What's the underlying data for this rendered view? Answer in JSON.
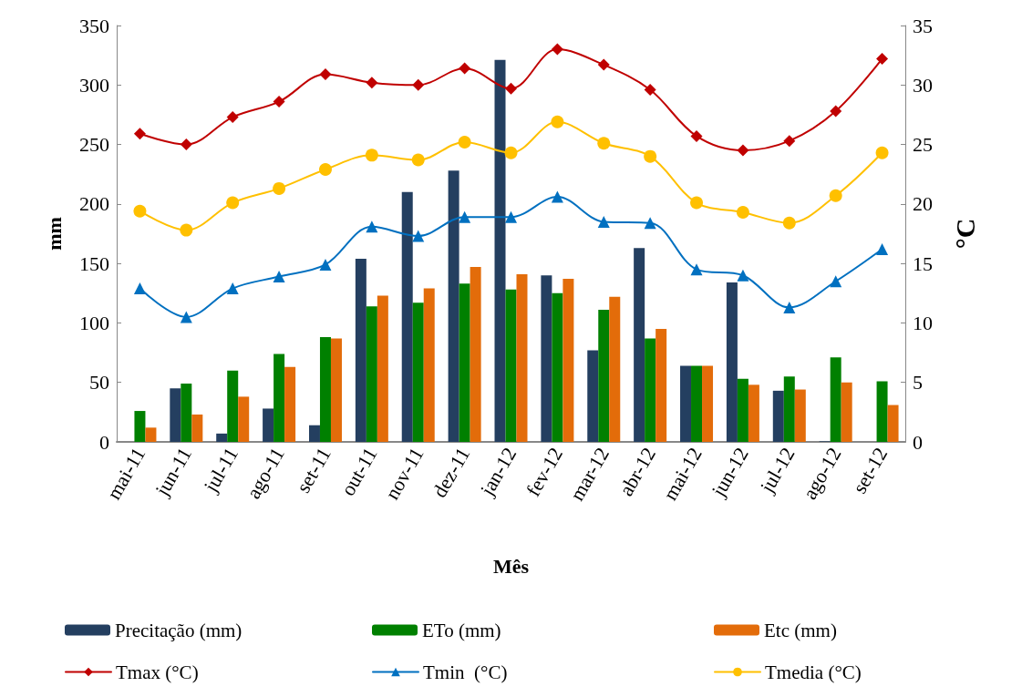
{
  "chart_data": {
    "type": "bar",
    "xlabel": "Mês",
    "ylabel": "mm",
    "y2label": "°C",
    "categories": [
      "mai-11",
      "jun-11",
      "jul-11",
      "ago-11",
      "set-11",
      "out-11",
      "nov-11",
      "dez-11",
      "jan-12",
      "fev-12",
      "mar-12",
      "abr-12",
      "mai-12",
      "jun-12",
      "jul-12",
      "ago-12",
      "set-12"
    ],
    "series": [
      {
        "name": "Precitação (mm)",
        "color": "#243f60",
        "values": [
          0,
          45,
          7,
          28,
          14,
          154,
          210,
          228,
          321,
          140,
          77,
          163,
          64,
          134,
          43,
          0.5,
          0
        ]
      },
      {
        "name": "ETo (mm)",
        "color": "#008000",
        "values": [
          26,
          49,
          60,
          74,
          88,
          114,
          117,
          133,
          128,
          125,
          111,
          87,
          64,
          53,
          55,
          71,
          51
        ]
      },
      {
        "name": "Etc (mm)",
        "color": "#e36c0a",
        "values": [
          12,
          23,
          38,
          63,
          87,
          123,
          129,
          147,
          141,
          137,
          122,
          95,
          64,
          48,
          44,
          50,
          31
        ]
      },
      {
        "name": "Tmax (°C)",
        "type": "line",
        "axis": "y2",
        "marker": "diamond",
        "color": "#c00000",
        "values": [
          25.9,
          25.0,
          27.3,
          28.6,
          30.9,
          30.2,
          30.0,
          31.4,
          29.7,
          33.0,
          31.7,
          29.6,
          25.7,
          24.5,
          25.3,
          27.8,
          32.2
        ]
      },
      {
        "name": "Tmin  (°C)",
        "type": "line",
        "axis": "y2",
        "marker": "triangle",
        "color": "#0070c0",
        "values": [
          12.9,
          10.5,
          12.9,
          13.9,
          14.9,
          18.1,
          17.3,
          18.9,
          18.9,
          20.6,
          18.5,
          18.4,
          14.5,
          14.0,
          11.3,
          13.5,
          16.2
        ]
      },
      {
        "name": "Tmedia (°C)",
        "type": "line",
        "axis": "y2",
        "marker": "circle",
        "color": "#ffc000",
        "values": [
          19.4,
          17.8,
          20.1,
          21.3,
          22.9,
          24.1,
          23.7,
          25.2,
          24.3,
          26.9,
          25.1,
          24.0,
          20.1,
          19.3,
          18.4,
          20.7,
          24.3
        ]
      }
    ],
    "ylim": [
      0,
      350
    ],
    "yticks": [
      0,
      50,
      100,
      150,
      200,
      250,
      300,
      350
    ],
    "y2lim": [
      0,
      35
    ],
    "y2ticks": [
      0,
      5,
      10,
      15,
      20,
      25,
      30,
      35
    ],
    "grid": false,
    "legend": "bottom",
    "line_style": "solid"
  }
}
